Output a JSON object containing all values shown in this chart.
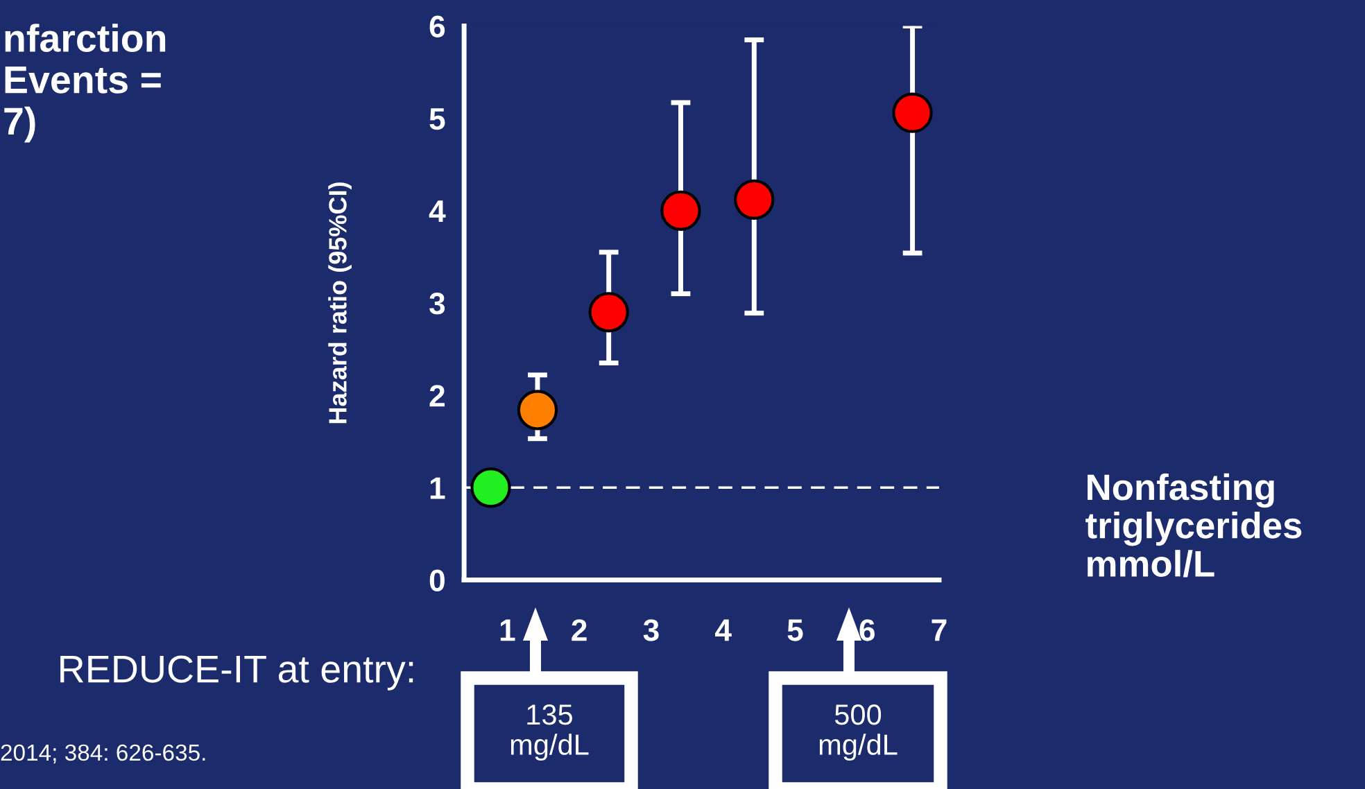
{
  "chart_data": {
    "type": "scatter",
    "title": "nfarction\nEvents =\n7)",
    "xlabel": "Nonfasting\ntriglycerides\nmmol/L",
    "ylabel": "Hazard ratio (95%CI)",
    "x": [
      0.77,
      1.42,
      2.41,
      3.41,
      4.43,
      6.63
    ],
    "series": [
      {
        "values": [
          1.0,
          1.84,
          2.9,
          4.0,
          4.12,
          5.06
        ],
        "colors": [
          "#22ee22",
          "#ff8000",
          "#ff0000",
          "#ff0000",
          "#ff0000",
          "#ff0000"
        ],
        "errors": [
          null,
          [
            1.53,
            2.22
          ],
          [
            2.35,
            3.55
          ],
          [
            3.1,
            5.17
          ],
          [
            2.89,
            5.85
          ],
          [
            3.54,
            6.0
          ]
        ]
      }
    ],
    "xlim": [
      0.4,
      7
    ],
    "ylim": [
      0,
      6
    ],
    "xticks": [
      1,
      2,
      3,
      4,
      5,
      6,
      7
    ],
    "yticks": [
      0,
      1,
      2,
      3,
      4,
      5,
      6
    ],
    "marker": "circle",
    "grid": false,
    "legend": false,
    "ref_lines": [
      {
        "axis": "y",
        "value": 1,
        "label": null,
        "color": "#ffffff",
        "line_style": "dashed"
      }
    ],
    "annotations": [
      "135\nmg/dL",
      "500\nmg/dL",
      "REDUCE-IT at entry:",
      "2014; 384: 626-635."
    ]
  }
}
